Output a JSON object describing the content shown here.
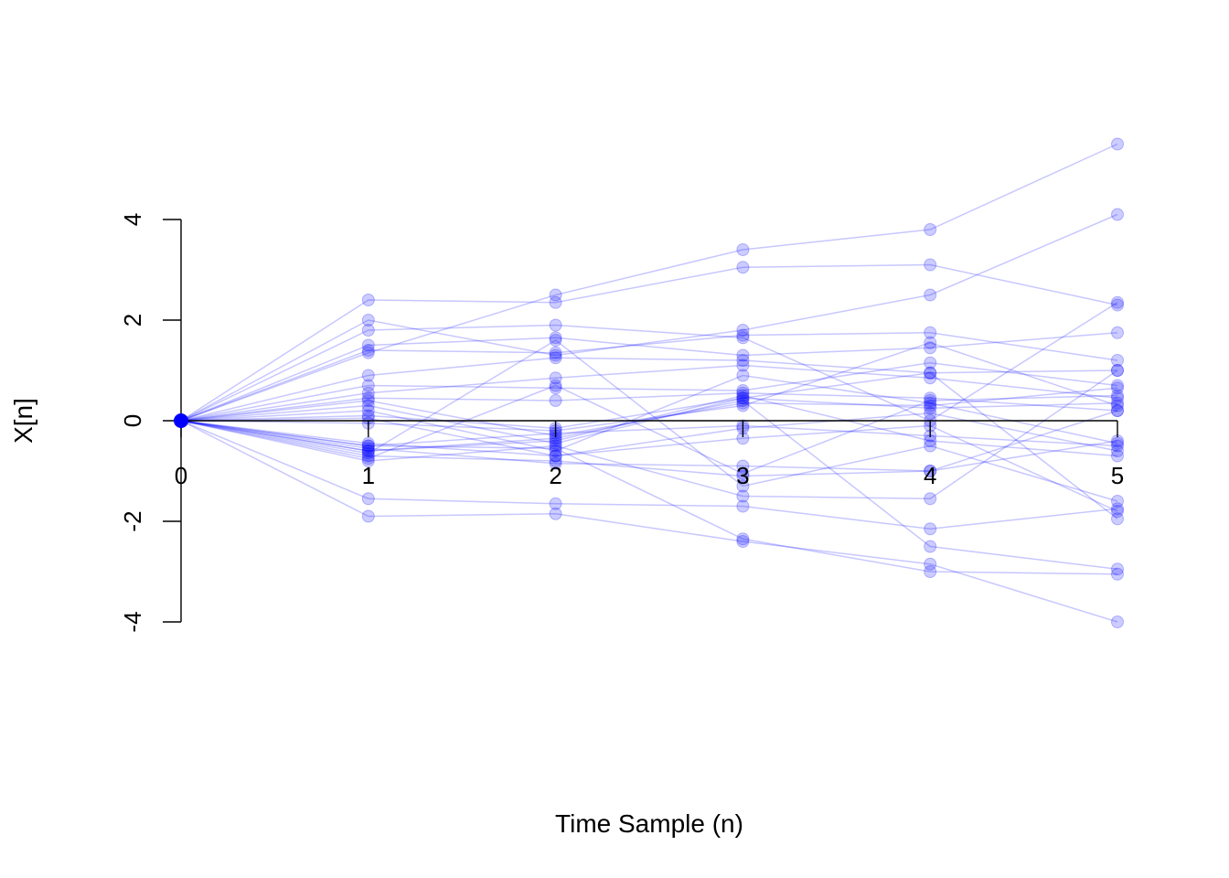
{
  "chart_data": {
    "type": "line",
    "title": "",
    "xlabel": "Time Sample (n)",
    "ylabel": "X[n]",
    "x": [
      0,
      1,
      2,
      3,
      4,
      5
    ],
    "x_tick_labels": [
      "0",
      "1",
      "2",
      "3",
      "4",
      "5"
    ],
    "y_ticks": [
      4,
      2,
      0,
      -2,
      -4
    ],
    "y_tick_labels": [
      "4",
      "2",
      "0",
      "-2",
      "-4"
    ],
    "xlim": [
      0,
      5
    ],
    "ylim": [
      -4,
      4
    ],
    "grid": false,
    "legend": "none",
    "colors": {
      "series": "#0000ff",
      "start_point": "#0000ff",
      "axis": "#000000"
    },
    "series": [
      {
        "values": [
          0,
          2.4,
          2.35,
          3.05,
          3.1,
          2.3
        ]
      },
      {
        "values": [
          0,
          1.35,
          2.5,
          3.4,
          3.8,
          5.5
        ]
      },
      {
        "values": [
          0,
          2.0,
          1.3,
          1.8,
          2.5,
          4.1
        ]
      },
      {
        "values": [
          0,
          1.8,
          1.9,
          1.65,
          0.0,
          2.35
        ]
      },
      {
        "values": [
          0,
          1.5,
          1.65,
          1.3,
          1.45,
          1.75
        ]
      },
      {
        "values": [
          0,
          1.4,
          1.35,
          1.7,
          1.75,
          1.2
        ]
      },
      {
        "values": [
          0,
          0.9,
          1.25,
          1.2,
          0.95,
          1.0
        ]
      },
      {
        "values": [
          0,
          0.7,
          0.65,
          0.6,
          1.15,
          0.7
        ]
      },
      {
        "values": [
          0,
          0.55,
          0.85,
          1.1,
          0.85,
          0.45
        ]
      },
      {
        "values": [
          0,
          0.45,
          0.4,
          0.55,
          0.45,
          0.2
        ]
      },
      {
        "values": [
          0,
          0.4,
          -0.3,
          0.35,
          0.3,
          0.65
        ]
      },
      {
        "values": [
          0,
          0.3,
          -0.45,
          0.45,
          0.25,
          0.35
        ]
      },
      {
        "values": [
          0,
          0.2,
          -0.6,
          0.9,
          0.35,
          -0.45
        ]
      },
      {
        "values": [
          0,
          0.05,
          -0.7,
          -0.15,
          0.15,
          -0.6
        ]
      },
      {
        "values": [
          0,
          -0.05,
          -0.2,
          0.3,
          1.55,
          0.3
        ]
      },
      {
        "values": [
          0,
          -0.5,
          -0.25,
          -0.1,
          -0.3,
          -0.5
        ]
      },
      {
        "values": [
          0,
          -0.6,
          -0.4,
          0.5,
          -0.4,
          -0.7
        ]
      },
      {
        "values": [
          0,
          -0.7,
          -0.8,
          -1.1,
          -1.0,
          -0.4
        ]
      },
      {
        "values": [
          0,
          -0.8,
          -0.5,
          -1.5,
          -1.55,
          1.0
        ]
      },
      {
        "values": [
          0,
          -0.65,
          1.6,
          -1.3,
          -0.5,
          -1.6
        ]
      },
      {
        "values": [
          0,
          -0.55,
          -0.85,
          -0.9,
          -1.0,
          0.2
        ]
      },
      {
        "values": [
          0,
          -0.75,
          0.7,
          -1.05,
          0.4,
          0.5
        ]
      },
      {
        "values": [
          0,
          -0.6,
          -0.35,
          0.4,
          -2.5,
          -2.95
        ]
      },
      {
        "values": [
          0,
          -1.55,
          -1.65,
          -1.7,
          -2.15,
          -1.75
        ]
      },
      {
        "values": [
          0,
          -1.9,
          -1.85,
          -2.4,
          -2.85,
          -4.0
        ]
      },
      {
        "values": [
          0,
          -0.5,
          -0.55,
          -2.35,
          -3.0,
          -3.05
        ]
      },
      {
        "values": [
          0,
          -0.45,
          -0.7,
          -0.35,
          -0.1,
          -1.8
        ]
      },
      {
        "values": [
          0,
          0.1,
          -0.15,
          0.45,
          0.95,
          -1.95
        ]
      }
    ]
  }
}
